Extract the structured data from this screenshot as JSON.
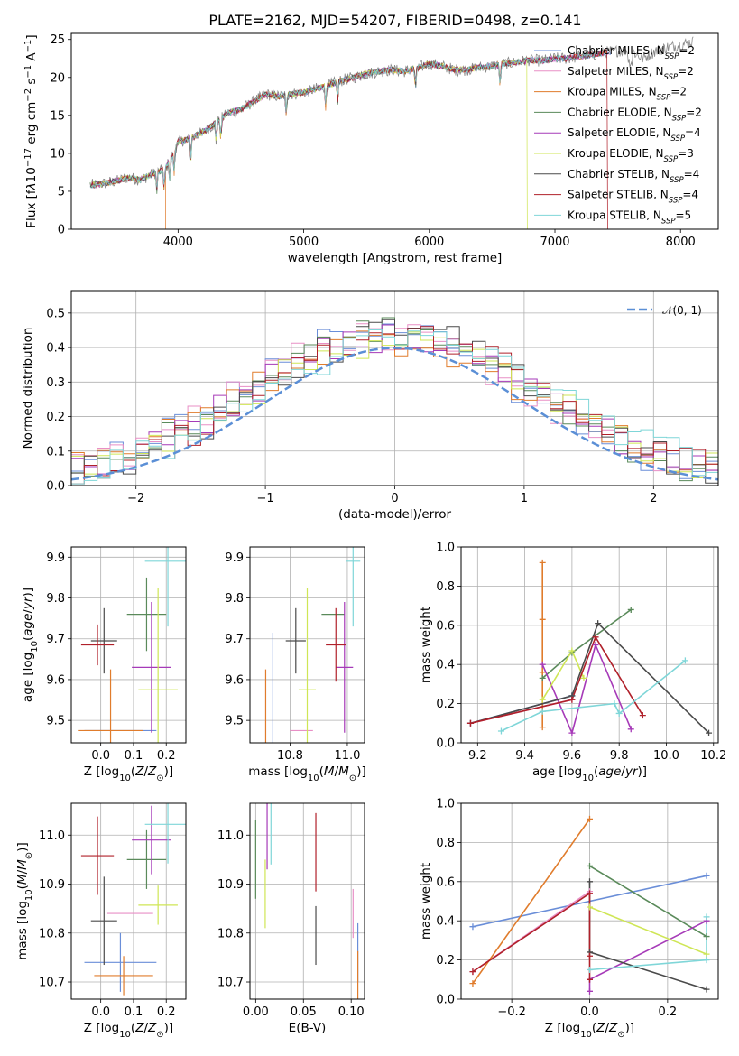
{
  "figure": {
    "title": "PLATE=2162, MJD=54207, FIBERID=0498, z=0.141"
  },
  "colors": {
    "Chabrier MILES": "#6a8ed8",
    "Salpeter MILES": "#e88fc6",
    "Kroupa MILES": "#e07c2c",
    "Chabrier ELODIE": "#5a8a5a",
    "Salpeter ELODIE": "#a63ab8",
    "Kroupa ELODIE": "#cfe655",
    "Chabrier STELIB": "#4a4a4a",
    "Salpeter STELIB": "#b0202a",
    "Kroupa STELIB": "#7fd6d8",
    "normal_curve": "#5b8fd6"
  },
  "models": [
    {
      "key": "Chabrier MILES",
      "label": "Chabrier MILES, N",
      "nssp": "=2"
    },
    {
      "key": "Salpeter MILES",
      "label": "Salpeter MILES, N",
      "nssp": "=2"
    },
    {
      "key": "Kroupa MILES",
      "label": "Kroupa MILES, N",
      "nssp": "=2"
    },
    {
      "key": "Chabrier ELODIE",
      "label": "Chabrier ELODIE, N",
      "nssp": "=2"
    },
    {
      "key": "Salpeter ELODIE",
      "label": "Salpeter ELODIE, N",
      "nssp": "=4"
    },
    {
      "key": "Kroupa ELODIE",
      "label": "Kroupa ELODIE, N",
      "nssp": "=3"
    },
    {
      "key": "Chabrier STELIB",
      "label": "Chabrier STELIB, N",
      "nssp": "=4"
    },
    {
      "key": "Salpeter STELIB",
      "label": "Salpeter STELIB, N",
      "nssp": "=4"
    },
    {
      "key": "Kroupa STELIB",
      "label": "Kroupa STELIB, N",
      "nssp": "=5"
    }
  ],
  "chart_data": [
    {
      "id": "spectrum",
      "type": "line",
      "xlabel": "wavelength [Angstrom, rest frame]",
      "ylabel": "Flux [f",
      "ylabel_units": "10",
      "ylabel_rest": " erg cm",
      "ylabel_tail": " s",
      "ylabel_end": " A",
      "xlim": [
        3150,
        8300
      ],
      "ylim": [
        0,
        25.8
      ],
      "xticks": [
        4000,
        5000,
        6000,
        7000,
        8000
      ],
      "yticks": [
        0,
        5,
        10,
        15,
        20,
        25
      ],
      "data_envelope": {
        "x": [
          3300,
          3400,
          3500,
          3600,
          3700,
          3800,
          3850,
          3900,
          3950,
          4000,
          4100,
          4200,
          4300,
          4400,
          4500,
          4600,
          4700,
          4800,
          4900,
          5000,
          5100,
          5200,
          5300,
          5400,
          5500,
          5600,
          5700,
          5800,
          5900,
          6000,
          6100,
          6200,
          6300,
          6400,
          6500,
          6600,
          6700,
          6800,
          6900,
          7000,
          7100,
          7200,
          7300,
          7400,
          7500,
          7600,
          7700,
          7800,
          7900,
          8000,
          8100
        ],
        "y": [
          5.8,
          6.0,
          6.3,
          6.8,
          6.5,
          7.3,
          7.6,
          8.0,
          9.5,
          11.5,
          12.0,
          12.8,
          14.0,
          15.3,
          15.8,
          16.8,
          17.8,
          17.5,
          17.8,
          18.0,
          18.5,
          19.0,
          19.6,
          20.0,
          20.5,
          20.8,
          21.0,
          20.8,
          21.2,
          21.8,
          21.5,
          21.0,
          21.0,
          21.3,
          21.5,
          21.8,
          22.0,
          22.3,
          22.2,
          22.5,
          22.5,
          22.8,
          23.0,
          23.3,
          23.5,
          23.6,
          22.5,
          23.5,
          24.0,
          24.3,
          24.7
        ]
      },
      "drop_outs": [
        {
          "series": "Kroupa MILES",
          "x": 3530
        },
        {
          "series": "Kroupa MILES",
          "x": 3900
        },
        {
          "series": "Kroupa ELODIE",
          "x": 6780
        },
        {
          "series": "Salpeter STELIB",
          "x": 7420
        }
      ]
    },
    {
      "id": "residual-histogram",
      "type": "bar",
      "xlabel": "(data-model)/error",
      "ylabel": "Normed distribution",
      "xlim": [
        -2.5,
        2.5
      ],
      "ylim": [
        0,
        0.565
      ],
      "xticks": [
        -2,
        -1,
        0,
        1,
        2
      ],
      "yticks": [
        0.0,
        0.1,
        0.2,
        0.3,
        0.4,
        0.5
      ],
      "bin_width": 0.1,
      "normal": {
        "mean": 0,
        "sigma": 1,
        "legend": "𝒩(0, 1)"
      }
    },
    {
      "id": "age-vs-Z",
      "type": "scatter",
      "xlabel": "Z [log",
      "ylabel": "age  [log",
      "xlim": [
        -0.09,
        0.26
      ],
      "ylim": [
        9.445,
        9.925
      ],
      "xticks": [
        0.0,
        0.1,
        0.2
      ],
      "yticks": [
        9.5,
        9.6,
        9.7,
        9.8,
        9.9
      ],
      "points": [
        {
          "series": "Chabrier MILES",
          "x": 0.06,
          "y": 9.475,
          "xerr": 0.11,
          "yerr": 0.0
        },
        {
          "series": "Salpeter MILES",
          "x": 0.15,
          "y": 9.475,
          "xerr": 0.0,
          "yerr": 0.0
        },
        {
          "series": "Kroupa MILES",
          "x": 0.03,
          "y": 9.475,
          "xerr": 0.1,
          "yerr": 0.15
        },
        {
          "series": "Chabrier ELODIE",
          "x": 0.14,
          "y": 9.76,
          "xerr": 0.06,
          "yerr": 0.09
        },
        {
          "series": "Salpeter ELODIE",
          "x": 0.155,
          "y": 9.63,
          "xerr": 0.06,
          "yerr": 0.16
        },
        {
          "series": "Kroupa ELODIE",
          "x": 0.175,
          "y": 9.575,
          "xerr": 0.06,
          "yerr": 0.25
        },
        {
          "series": "Chabrier STELIB",
          "x": 0.01,
          "y": 9.695,
          "xerr": 0.04,
          "yerr": 0.08
        },
        {
          "series": "Salpeter STELIB",
          "x": -0.01,
          "y": 9.685,
          "xerr": 0.05,
          "yerr": 0.05
        },
        {
          "series": "Kroupa STELIB",
          "x": 0.205,
          "y": 9.89,
          "xerr": 0.07,
          "yerr": 0.16
        }
      ]
    },
    {
      "id": "age-vs-mass",
      "type": "scatter",
      "xlabel": "mass [log",
      "ylabel": "",
      "xlim": [
        10.66,
        11.06
      ],
      "ylim": [
        9.445,
        9.925
      ],
      "xticks": [
        10.8,
        11.0
      ],
      "yticks": [
        9.5,
        9.6,
        9.7,
        9.8,
        9.9
      ],
      "points": [
        {
          "series": "Chabrier MILES",
          "x": 10.74,
          "y": 9.475,
          "xerr": 0.0,
          "yerr": 0.24
        },
        {
          "series": "Salpeter MILES",
          "x": 10.84,
          "y": 9.475,
          "xerr": 0.04,
          "yerr": 0.0
        },
        {
          "series": "Kroupa MILES",
          "x": 10.715,
          "y": 9.475,
          "xerr": 0.0,
          "yerr": 0.15
        },
        {
          "series": "Chabrier ELODIE",
          "x": 10.95,
          "y": 9.76,
          "xerr": 0.04,
          "yerr": 0.0
        },
        {
          "series": "Salpeter ELODIE",
          "x": 10.99,
          "y": 9.63,
          "xerr": 0.03,
          "yerr": 0.16
        },
        {
          "series": "Kroupa ELODIE",
          "x": 10.86,
          "y": 9.575,
          "xerr": 0.03,
          "yerr": 0.25
        },
        {
          "series": "Chabrier STELIB",
          "x": 10.82,
          "y": 9.695,
          "xerr": 0.035,
          "yerr": 0.08
        },
        {
          "series": "Salpeter STELIB",
          "x": 10.96,
          "y": 9.685,
          "xerr": 0.035,
          "yerr": 0.09
        },
        {
          "series": "Kroupa STELIB",
          "x": 11.02,
          "y": 9.89,
          "xerr": 0.025,
          "yerr": 0.16
        }
      ]
    },
    {
      "id": "mass-weight-vs-age",
      "type": "line",
      "xlabel": "age  [log",
      "ylabel": "mass weight",
      "xlim": [
        9.13,
        10.22
      ],
      "ylim": [
        0,
        1
      ],
      "xticks": [
        9.2,
        9.4,
        9.6,
        9.8,
        10.0,
        10.2
      ],
      "yticks": [
        0.0,
        0.2,
        0.4,
        0.6,
        0.8,
        1.0
      ],
      "series": [
        {
          "name": "Chabrier MILES",
          "x": [
            9.17,
            9.6
          ],
          "y": [
            0.1,
            0.24
          ]
        },
        {
          "name": "Salpeter MILES",
          "x": [
            9.17,
            9.6
          ],
          "y": [
            0.1,
            0.22
          ]
        },
        {
          "name": "Kroupa MILES",
          "x": [
            9.475,
            9.475,
            9.475,
            9.475
          ],
          "y": [
            0.08,
            0.36,
            0.63,
            0.92
          ]
        },
        {
          "name": "Chabrier ELODIE",
          "x": [
            9.475,
            9.6,
            9.85
          ],
          "y": [
            0.33,
            0.46,
            0.68
          ]
        },
        {
          "name": "Salpeter ELODIE",
          "x": [
            9.475,
            9.6,
            9.7,
            9.85
          ],
          "y": [
            0.4,
            0.05,
            0.5,
            0.07
          ]
        },
        {
          "name": "Kroupa ELODIE",
          "x": [
            9.475,
            9.6,
            9.65
          ],
          "y": [
            0.22,
            0.47,
            0.33
          ]
        },
        {
          "name": "Chabrier STELIB",
          "x": [
            9.17,
            9.6,
            9.71,
            10.18
          ],
          "y": [
            0.1,
            0.24,
            0.61,
            0.05
          ]
        },
        {
          "name": "Salpeter STELIB",
          "x": [
            9.17,
            9.6,
            9.7,
            9.9
          ],
          "y": [
            0.1,
            0.22,
            0.54,
            0.14
          ]
        },
        {
          "name": "Kroupa STELIB",
          "x": [
            9.3,
            9.475,
            9.78,
            9.8,
            10.08
          ],
          "y": [
            0.06,
            0.16,
            0.2,
            0.15,
            0.42
          ]
        }
      ]
    },
    {
      "id": "mass-vs-Z",
      "type": "scatter",
      "xlabel": "Z [log",
      "ylabel": "mass [log",
      "xlim": [
        -0.09,
        0.26
      ],
      "ylim": [
        10.665,
        11.065
      ],
      "xticks": [
        0.0,
        0.1,
        0.2
      ],
      "yticks": [
        10.7,
        10.8,
        10.9,
        11.0
      ],
      "points": [
        {
          "series": "Chabrier MILES",
          "x": 0.06,
          "y": 10.74,
          "xerr": 0.11,
          "yerr": 0.06
        },
        {
          "series": "Salpeter MILES",
          "x": 0.09,
          "y": 10.84,
          "xerr": 0.07,
          "yerr": 0.0
        },
        {
          "series": "Kroupa MILES",
          "x": 0.07,
          "y": 10.713,
          "xerr": 0.09,
          "yerr": 0.04
        },
        {
          "series": "Chabrier ELODIE",
          "x": 0.14,
          "y": 10.95,
          "xerr": 0.06,
          "yerr": 0.06
        },
        {
          "series": "Salpeter ELODIE",
          "x": 0.155,
          "y": 10.99,
          "xerr": 0.06,
          "yerr": 0.07
        },
        {
          "series": "Kroupa ELODIE",
          "x": 0.175,
          "y": 10.857,
          "xerr": 0.06,
          "yerr": 0.04
        },
        {
          "series": "Chabrier STELIB",
          "x": 0.01,
          "y": 10.825,
          "xerr": 0.04,
          "yerr": 0.09
        },
        {
          "series": "Salpeter STELIB",
          "x": -0.01,
          "y": 10.958,
          "xerr": 0.05,
          "yerr": 0.08
        },
        {
          "series": "Kroupa STELIB",
          "x": 0.205,
          "y": 11.022,
          "xerr": 0.07,
          "yerr": 0.08
        }
      ]
    },
    {
      "id": "mass-vs-EBV",
      "type": "scatter",
      "xlabel": "E(B-V)",
      "ylabel": "",
      "xlim": [
        -0.006,
        0.114
      ],
      "ylim": [
        10.665,
        11.065
      ],
      "xticks": [
        0.0,
        0.05,
        0.1
      ],
      "yticks": [
        10.7,
        10.8,
        10.9,
        11.0
      ],
      "points": [
        {
          "series": "Chabrier MILES",
          "x": 0.107,
          "y": 10.76,
          "xerr": 0.0,
          "yerr": 0.06
        },
        {
          "series": "Salpeter MILES",
          "x": 0.102,
          "y": 10.84,
          "xerr": 0.0,
          "yerr": 0.05
        },
        {
          "series": "Kroupa MILES",
          "x": 0.107,
          "y": 10.713,
          "xerr": 0.0,
          "yerr": 0.05
        },
        {
          "series": "Chabrier ELODIE",
          "x": 0.0,
          "y": 10.95,
          "xerr": 0.0,
          "yerr": 0.08
        },
        {
          "series": "Salpeter ELODIE",
          "x": 0.012,
          "y": 11.0,
          "xerr": 0.0,
          "yerr": 0.07
        },
        {
          "series": "Kroupa ELODIE",
          "x": 0.01,
          "y": 10.88,
          "xerr": 0.0,
          "yerr": 0.07
        },
        {
          "series": "Chabrier STELIB",
          "x": 0.063,
          "y": 10.795,
          "xerr": 0.0,
          "yerr": 0.06
        },
        {
          "series": "Salpeter STELIB",
          "x": 0.063,
          "y": 10.965,
          "xerr": 0.0,
          "yerr": 0.08
        },
        {
          "series": "Kroupa STELIB",
          "x": 0.016,
          "y": 11.02,
          "xerr": 0.0,
          "yerr": 0.08
        }
      ]
    },
    {
      "id": "mass-weight-vs-Z",
      "type": "line",
      "xlabel": "Z [log",
      "ylabel": "mass weight",
      "xlim": [
        -0.33,
        0.33
      ],
      "ylim": [
        0,
        1
      ],
      "xticks": [
        -0.2,
        0.0,
        0.2
      ],
      "yticks": [
        0.0,
        0.2,
        0.4,
        0.6,
        0.8,
        1.0
      ],
      "series": [
        {
          "name": "Chabrier MILES",
          "x": [
            -0.3,
            0.3
          ],
          "y": [
            0.37,
            0.63
          ]
        },
        {
          "name": "Salpeter MILES",
          "x": [
            -0.3,
            0.0
          ],
          "y": [
            0.14,
            0.55
          ]
        },
        {
          "name": "Kroupa MILES",
          "x": [
            -0.3,
            0.0
          ],
          "y": [
            0.08,
            0.92
          ]
        },
        {
          "name": "Chabrier ELODIE",
          "x": [
            0.0,
            0.3
          ],
          "y": [
            0.68,
            0.32
          ]
        },
        {
          "name": "Salpeter ELODIE",
          "x": [
            0.0,
            0.0,
            0.3
          ],
          "y": [
            0.04,
            0.1,
            0.4
          ]
        },
        {
          "name": "Kroupa ELODIE",
          "x": [
            0.0,
            0.3
          ],
          "y": [
            0.47,
            0.23
          ]
        },
        {
          "name": "Chabrier STELIB",
          "x": [
            0.0,
            0.0,
            0.3
          ],
          "y": [
            0.6,
            0.24,
            0.05
          ]
        },
        {
          "name": "Salpeter STELIB",
          "x": [
            -0.3,
            0.0,
            0.0,
            0.0
          ],
          "y": [
            0.14,
            0.54,
            0.22,
            0.1
          ]
        },
        {
          "name": "Kroupa STELIB",
          "x": [
            0.0,
            0.3,
            0.3
          ],
          "y": [
            0.15,
            0.2,
            0.42
          ]
        }
      ]
    }
  ]
}
